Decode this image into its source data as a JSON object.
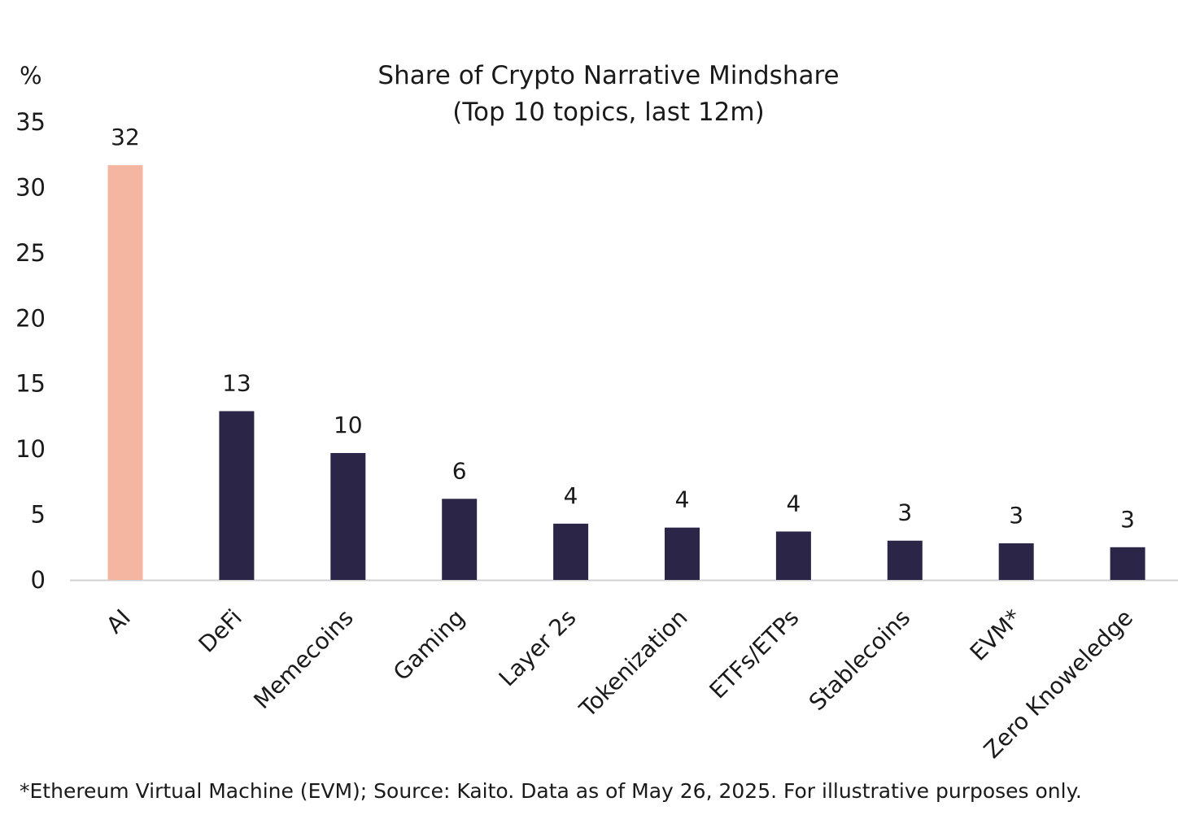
{
  "chart_data": {
    "type": "bar",
    "title": "Share of Crypto Narrative Mindshare",
    "subtitle": "(Top 10 topics, last 12m)",
    "y_unit": "%",
    "ylim": [
      0,
      35
    ],
    "yticks": [
      0,
      5,
      10,
      15,
      20,
      25,
      30,
      35
    ],
    "categories": [
      "AI",
      "DeFi",
      "Memecoins",
      "Gaming",
      "Layer 2s",
      "Tokenization",
      "ETFs/ETPs",
      "Stablecoins",
      "EVM*",
      "Zero Knoweledge"
    ],
    "values": [
      31.7,
      12.9,
      9.7,
      6.2,
      4.3,
      4.0,
      3.7,
      3.0,
      2.8,
      2.5
    ],
    "data_labels": [
      "32",
      "13",
      "10",
      "6",
      "4",
      "4",
      "4",
      "3",
      "3",
      "3"
    ],
    "colors": {
      "highlight": "#F4B6A0",
      "default": "#2B2547",
      "axis": "#d0d0d0"
    },
    "highlight_index": 0,
    "grid": false,
    "legend": "none"
  },
  "footnote": "*Ethereum Virtual Machine (EVM); Source: Kaito. Data as of May 26, 2025. For illustrative purposes only."
}
